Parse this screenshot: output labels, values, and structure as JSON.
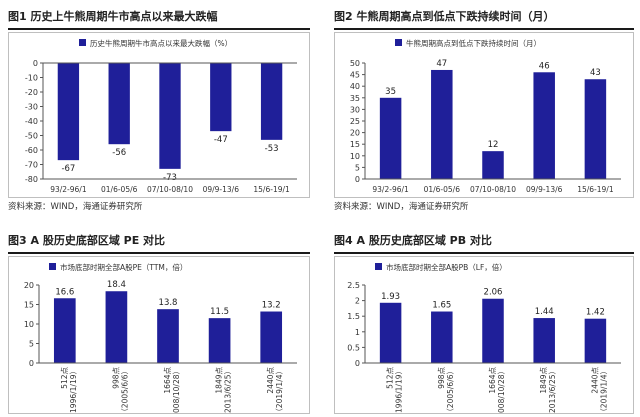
{
  "source_line": "资料来源：WIND，海通证券研究所",
  "charts": [
    {
      "type": "bar",
      "panel_title": "图1  历史上牛熊周期牛市高点以来最大跌幅",
      "legend": "历史牛熊周期牛市高点以来最大跌幅（%）",
      "categories": [
        "93/2-96/1",
        "01/6-05/6",
        "07/10-08/10",
        "09/9-13/6",
        "15/6-19/1"
      ],
      "values": [
        -67,
        -56,
        -73,
        -47,
        -53
      ],
      "value_labels": [
        "-67",
        "-56",
        "-73",
        "-47",
        "-53"
      ],
      "ylim": [
        -80,
        0
      ],
      "yticks": [
        0,
        -10,
        -20,
        -30,
        -40,
        -50,
        -60,
        -70,
        -80
      ],
      "color": "#1f1f99"
    },
    {
      "type": "bar",
      "panel_title": "图2  牛熊周期高点到低点下跌持续时间（月）",
      "legend": "牛熊周期高点到低点下跌持续时间（月）",
      "categories": [
        "93/2-96/1",
        "01/6-05/6",
        "07/10-08/10",
        "09/9-13/6",
        "15/6-19/1"
      ],
      "values": [
        35,
        47,
        12,
        46,
        43
      ],
      "value_labels": [
        "35",
        "47",
        "12",
        "46",
        "43"
      ],
      "ylim": [
        0,
        50
      ],
      "yticks": [
        0,
        5,
        10,
        15,
        20,
        25,
        30,
        35,
        40,
        45,
        50
      ],
      "color": "#1f1f99"
    },
    {
      "type": "bar",
      "panel_title": "图3  A 股历史底部区域 PE 对比",
      "legend": "市场底部时期全部A股PE（TTM，倍）",
      "categories": [
        "512点（1996/1/19）",
        "998点（2005/6/6）",
        "1664点（2008/10/28）",
        "1849点（2013/6/25）",
        "2440点（2019/1/4）"
      ],
      "category_lines": [
        [
          "512点",
          "（1996/1/19）"
        ],
        [
          "998点",
          "（2005/6/6）"
        ],
        [
          "1664点",
          "（2008/10/28）"
        ],
        [
          "1849点",
          "（2013/6/25）"
        ],
        [
          "2440点",
          "（2019/1/4）"
        ]
      ],
      "values": [
        16.6,
        18.4,
        13.8,
        11.5,
        13.2
      ],
      "value_labels": [
        "16.6",
        "18.4",
        "13.8",
        "11.5",
        "13.2"
      ],
      "ylim": [
        0,
        20
      ],
      "yticks": [
        0,
        5,
        10,
        15,
        20
      ],
      "color": "#1f1f99"
    },
    {
      "type": "bar",
      "panel_title": "图4  A 股历史底部区域 PB 对比",
      "legend": "市场底部时期全部A股PB（LF，倍）",
      "categories": [
        "512点（1996/1/19）",
        "998点（2005/6/6）",
        "1664点（2008/10/28）",
        "1849点（2013/6/25）",
        "2440点（2019/1/4）"
      ],
      "category_lines": [
        [
          "512点",
          "（1996/1/19）"
        ],
        [
          "998点",
          "（2005/6/6）"
        ],
        [
          "1664点",
          "（2008/10/28）"
        ],
        [
          "1849点",
          "（2013/6/25）"
        ],
        [
          "2440点",
          "（2019/1/4）"
        ]
      ],
      "values": [
        1.93,
        1.65,
        2.06,
        1.44,
        1.42
      ],
      "value_labels": [
        "1.93",
        "1.65",
        "2.06",
        "1.44",
        "1.42"
      ],
      "ylim": [
        0,
        2.5
      ],
      "yticks": [
        0,
        0.5,
        1,
        1.5,
        2,
        2.5
      ],
      "ytick_labels": [
        "0",
        "0.5",
        "1",
        "1.5",
        "2",
        "2.5"
      ],
      "color": "#1f1f99"
    }
  ]
}
